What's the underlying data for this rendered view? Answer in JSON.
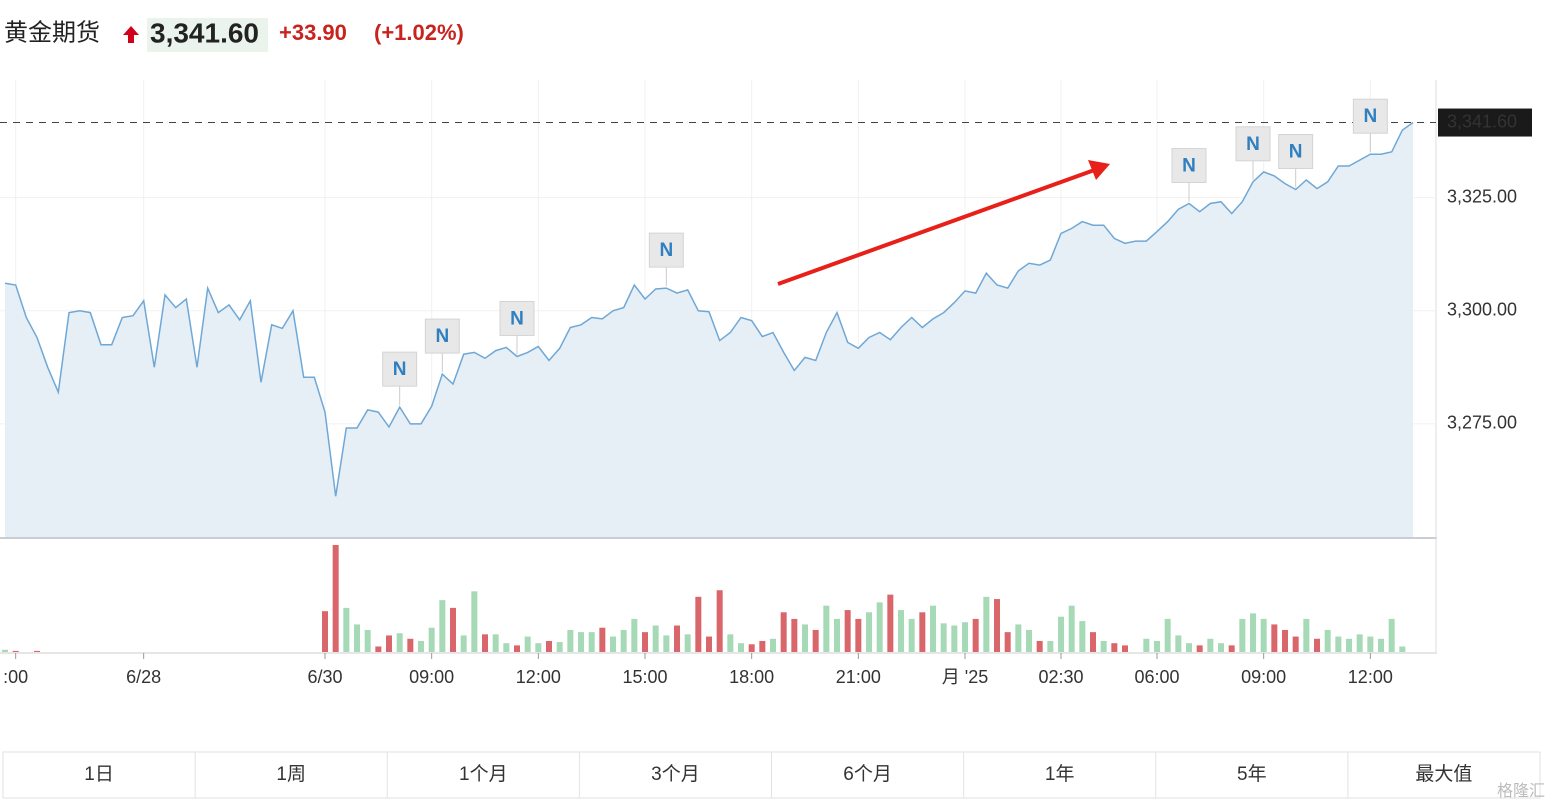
{
  "header": {
    "name": "黄金期货",
    "price": "3,341.60",
    "change": "+33.90",
    "change_pct": "(+1.02%)"
  },
  "chart_data": {
    "type": "line",
    "categories": [
      null,
      ":00",
      null,
      null,
      null,
      null,
      null,
      null,
      null,
      null,
      null,
      null,
      null,
      "6/28",
      null,
      null,
      null,
      null,
      null,
      null,
      null,
      null,
      null,
      null,
      null,
      null,
      null,
      null,
      null,
      null,
      "6/30",
      null,
      null,
      null,
      null,
      null,
      null,
      null,
      null,
      null,
      "09:00",
      null,
      null,
      null,
      null,
      null,
      null,
      null,
      null,
      null,
      "12:00",
      null,
      null,
      null,
      null,
      null,
      null,
      null,
      null,
      null,
      "15:00",
      null,
      null,
      null,
      null,
      null,
      null,
      null,
      null,
      null,
      "18:00",
      null,
      null,
      null,
      null,
      null,
      null,
      null,
      null,
      null,
      "21:00",
      null,
      null,
      null,
      null,
      null,
      null,
      null,
      null,
      null,
      "月 '25",
      null,
      null,
      null,
      null,
      null,
      null,
      null,
      null,
      "02:30",
      null,
      null,
      null,
      null,
      null,
      null,
      null,
      null,
      "06:00",
      null,
      null,
      null,
      null,
      null,
      null,
      null,
      null,
      null,
      "09:00",
      null,
      null,
      null,
      null,
      null,
      null,
      null,
      null,
      null,
      "12:00",
      null,
      null,
      null,
      null
    ],
    "values": [
      3306.1,
      3305.7,
      3298.5,
      3294.1,
      3287.5,
      3282.0,
      3299.6,
      3300.0,
      3299.6,
      3292.5,
      3292.5,
      3298.5,
      3298.9,
      3302.2,
      3287.5,
      3303.5,
      3300.7,
      3302.6,
      3287.5,
      3305.0,
      3299.6,
      3301.3,
      3298.0,
      3302.2,
      3284.2,
      3296.9,
      3296.1,
      3300.0,
      3285.3,
      3285.3,
      3277.6,
      3259.0,
      3274.1,
      3274.1,
      3278.1,
      3277.6,
      3274.3,
      3278.7,
      3275.0,
      3275.0,
      3278.9,
      3286.0,
      3283.8,
      3290.4,
      3290.8,
      3289.5,
      3291.2,
      3291.9,
      3289.9,
      3290.8,
      3292.1,
      3289.0,
      3291.7,
      3296.3,
      3296.9,
      3298.5,
      3298.2,
      3300.0,
      3300.7,
      3305.7,
      3302.6,
      3304.8,
      3305.0,
      3303.9,
      3304.6,
      3300.0,
      3299.8,
      3293.4,
      3295.2,
      3298.5,
      3297.8,
      3294.3,
      3295.2,
      3290.8,
      3286.8,
      3289.7,
      3289.0,
      3295.2,
      3299.6,
      3293.0,
      3291.7,
      3294.1,
      3295.2,
      3293.6,
      3296.3,
      3298.5,
      3296.3,
      3298.2,
      3299.6,
      3301.8,
      3304.4,
      3303.9,
      3308.3,
      3305.7,
      3305.0,
      3308.8,
      3310.5,
      3310.1,
      3311.2,
      3317.1,
      3318.2,
      3319.7,
      3318.9,
      3318.9,
      3316.0,
      3314.9,
      3315.4,
      3315.4,
      3317.5,
      3319.7,
      3322.4,
      3323.7,
      3321.9,
      3323.7,
      3324.1,
      3321.5,
      3324.1,
      3328.5,
      3330.7,
      3329.8,
      3328.1,
      3326.8,
      3328.9,
      3327.0,
      3328.5,
      3332.0,
      3332.0,
      3333.3,
      3334.6,
      3334.6,
      3335.1,
      3339.9,
      3341.6
    ],
    "color": "#6fa8d6",
    "fill": "#e6eef6",
    "ylim": [
      3250,
      3351
    ],
    "yticks": [
      {
        "value": 3275,
        "label": "3,275.00"
      },
      {
        "value": 3300,
        "label": "3,300.00"
      },
      {
        "value": 3325,
        "label": "3,325.00"
      }
    ],
    "grid": true,
    "last_price": {
      "value": 3341.6,
      "label": "3,341.60"
    },
    "news_markers": [
      {
        "index": 37,
        "label": "N"
      },
      {
        "index": 41,
        "label": "N"
      },
      {
        "index": 48,
        "label": "N"
      },
      {
        "index": 62,
        "label": "N"
      },
      {
        "index": 111,
        "label": "N"
      },
      {
        "index": 117,
        "label": "N"
      },
      {
        "index": 121,
        "label": "N"
      },
      {
        "index": 128,
        "label": "N"
      }
    ],
    "volume": {
      "up_color": "#a6d9b5",
      "down_color": "#d9666b",
      "values": [
        2,
        1,
        0,
        1,
        0,
        0,
        0,
        0,
        0,
        0,
        0,
        0,
        0,
        0,
        0,
        0,
        0,
        0,
        0,
        0,
        0,
        0,
        0,
        0,
        0,
        0,
        0,
        0,
        0,
        0,
        37,
        97,
        40,
        25,
        20,
        5,
        15,
        17,
        12,
        10,
        22,
        47,
        40,
        15,
        55,
        16,
        16,
        8,
        6,
        14,
        8,
        10,
        9,
        20,
        18,
        18,
        22,
        14,
        20,
        30,
        18,
        24,
        15,
        24,
        16,
        50,
        14,
        56,
        16,
        8,
        7,
        10,
        12,
        36,
        30,
        25,
        20,
        42,
        30,
        38,
        30,
        36,
        45,
        52,
        38,
        30,
        36,
        42,
        26,
        24,
        27,
        30,
        50,
        48,
        18,
        25,
        20,
        10,
        10,
        32,
        42,
        28,
        18,
        10,
        8,
        6,
        0,
        12,
        10,
        30,
        15,
        8,
        6,
        12,
        8,
        6,
        30,
        35,
        30,
        25,
        20,
        14,
        30,
        12,
        20,
        14,
        12,
        16,
        14,
        12,
        30,
        5,
        0
      ]
    }
  },
  "range_buttons": [
    "1日",
    "1周",
    "1个月",
    "3个月",
    "6个月",
    "1年",
    "5年",
    "最大值"
  ],
  "watermark": "格隆汇"
}
